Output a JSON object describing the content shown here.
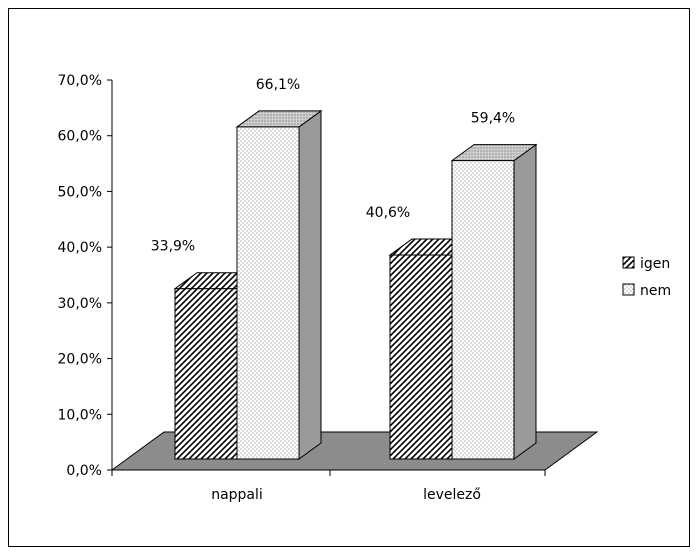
{
  "chart_data": {
    "type": "bar",
    "categories": [
      "nappali",
      "levelező"
    ],
    "series": [
      {
        "name": "igen",
        "values": [
          33.9,
          40.6
        ],
        "labels": [
          "33,9%",
          "40,6%"
        ]
      },
      {
        "name": "nem",
        "values": [
          66.1,
          59.4
        ],
        "labels": [
          "66,1%",
          "59,4%"
        ]
      }
    ],
    "y_ticks": [
      "0,0%",
      "10,0%",
      "20,0%",
      "30,0%",
      "40,0%",
      "50,0%",
      "60,0%",
      "70,0%"
    ],
    "ylim": [
      0,
      70
    ],
    "legend_position": "right",
    "style": "3d-clustered-column",
    "grid": false,
    "colors": {
      "floor": "#8c8c8c",
      "bar_side": "#9a9a9a",
      "border": "#000000"
    }
  }
}
